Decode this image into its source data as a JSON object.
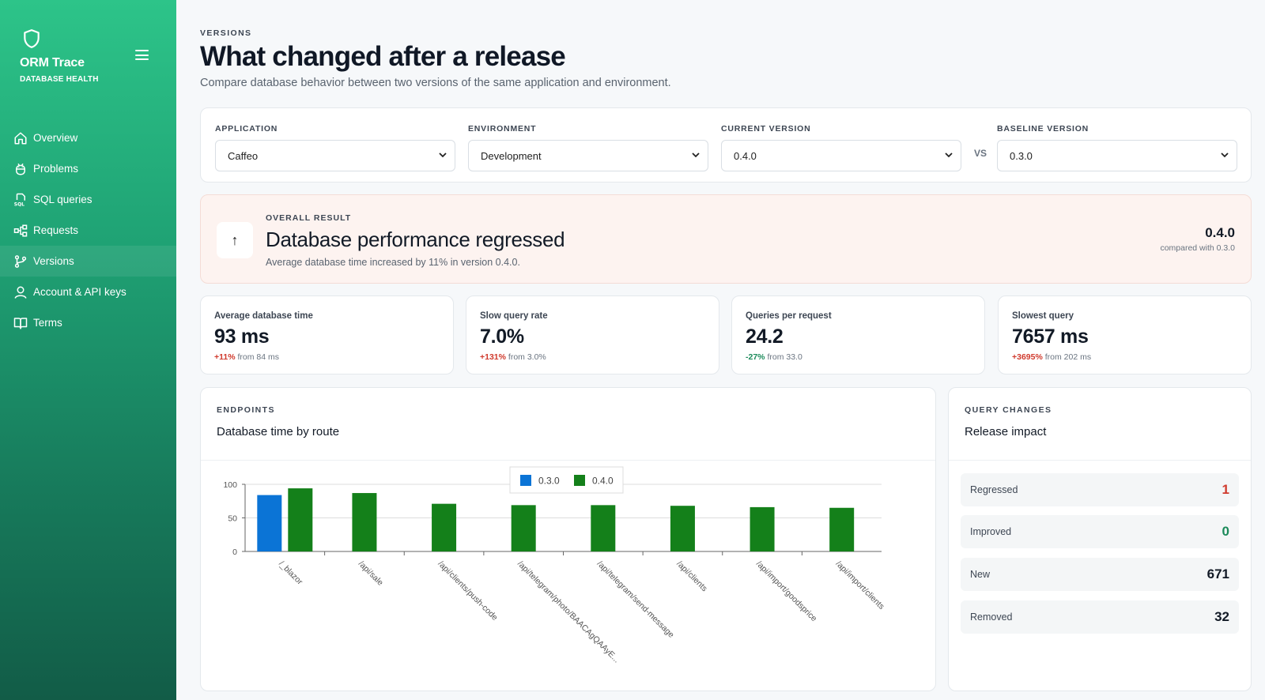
{
  "app": {
    "name": "ORM Trace",
    "subtitle": "DATABASE HEALTH"
  },
  "nav": [
    {
      "label": "Overview",
      "icon": "home-icon"
    },
    {
      "label": "Problems",
      "icon": "bug-icon"
    },
    {
      "label": "SQL queries",
      "icon": "sql-icon"
    },
    {
      "label": "Requests",
      "icon": "flow-icon"
    },
    {
      "label": "Versions",
      "icon": "branch-icon",
      "active": true
    },
    {
      "label": "Account & API keys",
      "icon": "user-icon"
    },
    {
      "label": "Terms",
      "icon": "book-icon"
    }
  ],
  "header": {
    "eyebrow": "VERSIONS",
    "title": "What changed after a release",
    "subtitle": "Compare database behavior between two versions of the same application and environment."
  },
  "filters": {
    "application": {
      "label": "APPLICATION",
      "value": "Caffeo"
    },
    "environment": {
      "label": "ENVIRONMENT",
      "value": "Development"
    },
    "current": {
      "label": "CURRENT VERSION",
      "value": "0.4.0"
    },
    "vs": "VS",
    "baseline": {
      "label": "BASELINE VERSION",
      "value": "0.3.0"
    }
  },
  "result": {
    "arrow": "↑",
    "label": "OVERALL RESULT",
    "headline": "Database performance regressed",
    "detail": "Average database time increased by 11% in version 0.4.0.",
    "version": "0.4.0",
    "compared": "compared with 0.3.0"
  },
  "metrics": [
    {
      "label": "Average database time",
      "value": "93 ms",
      "delta": "+11%",
      "from": "from 84 ms",
      "trend": "bad"
    },
    {
      "label": "Slow query rate",
      "value": "7.0%",
      "delta": "+131%",
      "from": "from 3.0%",
      "trend": "bad"
    },
    {
      "label": "Queries per request",
      "value": "24.2",
      "delta": "-27%",
      "from": "from 33.0",
      "trend": "good"
    },
    {
      "label": "Slowest query",
      "value": "7657 ms",
      "delta": "+3695%",
      "from": "from 202 ms",
      "trend": "bad"
    }
  ],
  "endpoints": {
    "eyebrow": "ENDPOINTS",
    "title": "Database time by route"
  },
  "impact": {
    "eyebrow": "QUERY CHANGES",
    "title": "Release impact",
    "rows": [
      {
        "label": "Regressed",
        "value": "1",
        "tone": "red"
      },
      {
        "label": "Improved",
        "value": "0",
        "tone": "green"
      },
      {
        "label": "New",
        "value": "671",
        "tone": "plain"
      },
      {
        "label": "Removed",
        "value": "32",
        "tone": "plain"
      }
    ]
  },
  "colors": {
    "series_0_3_0": "#0b74d6",
    "series_0_4_0": "#14801a"
  },
  "chart_data": {
    "type": "bar",
    "categories": [
      "/_blazor",
      "/api/sale",
      "/api/clients/push-code",
      "/api/telegram/photo/BAACAgQAAyE...",
      "/api/telegram/send-message",
      "/api/clients",
      "/api/import/goodsprice",
      "/api/import/clients"
    ],
    "series": [
      {
        "name": "0.3.0",
        "values": [
          84,
          null,
          null,
          null,
          null,
          null,
          null,
          null
        ]
      },
      {
        "name": "0.4.0",
        "values": [
          94,
          87,
          71,
          69,
          69,
          68,
          66,
          65
        ]
      }
    ],
    "yticks": [
      0,
      50,
      100
    ],
    "ylim": [
      0,
      100
    ],
    "legend": "top-center",
    "grid": true
  }
}
